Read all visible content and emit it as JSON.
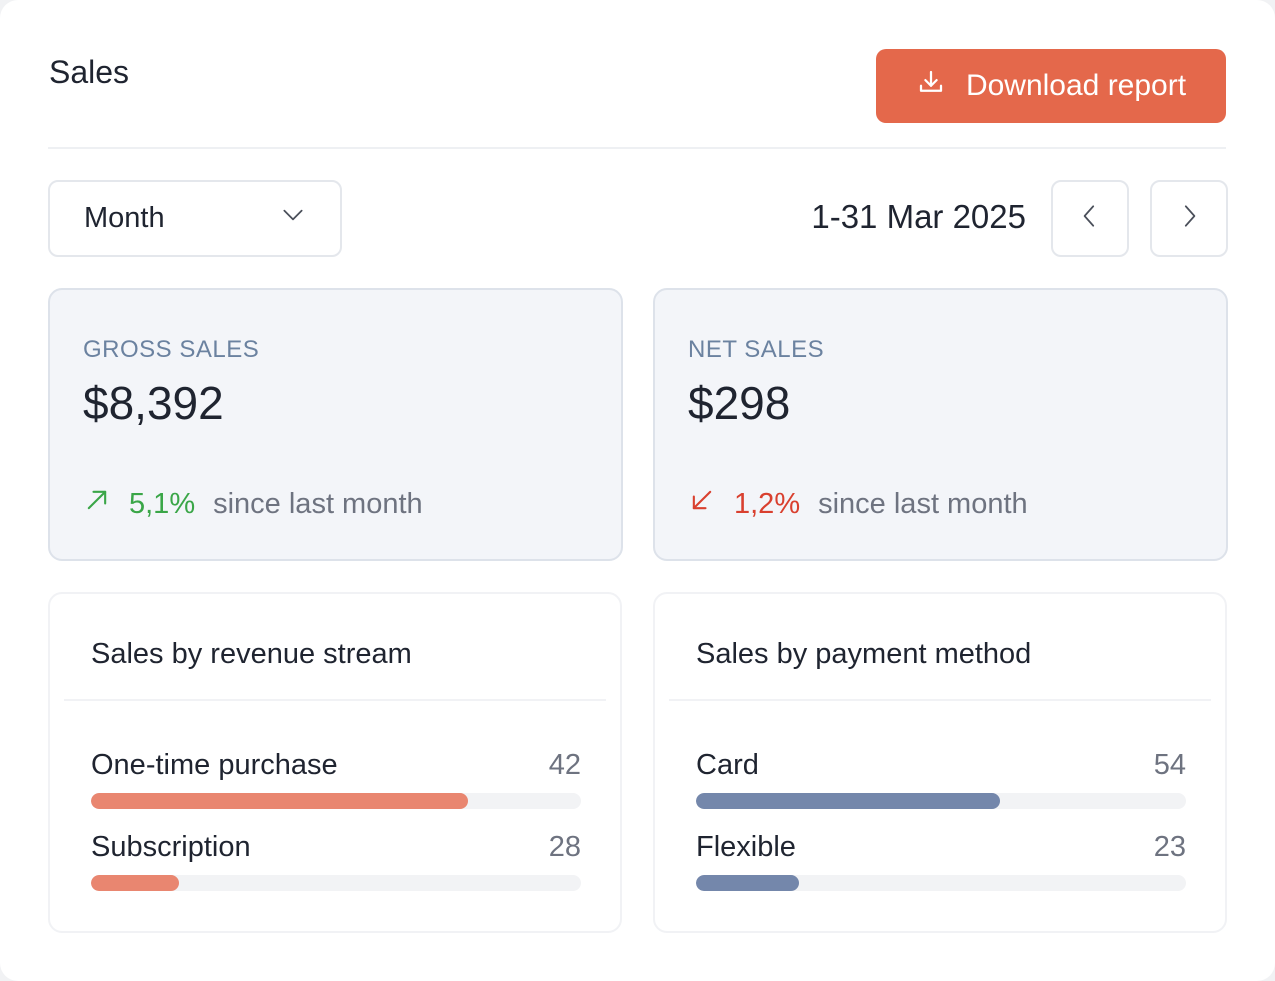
{
  "header": {
    "title": "Sales",
    "download_label": "Download report"
  },
  "filters": {
    "period": "Month",
    "date_range": "1-31 Mar 2025"
  },
  "stats": {
    "gross": {
      "label": "GROSS SALES",
      "value": "$8,392",
      "change": "5,1%",
      "direction": "up",
      "since": "since last month"
    },
    "net": {
      "label": "NET SALES",
      "value": "$298",
      "change": "1,2%",
      "direction": "down",
      "since": "since last month"
    }
  },
  "revenue_stream": {
    "title": "Sales by revenue stream",
    "color": "#e98670",
    "items": [
      {
        "label": "One-time purchase",
        "value": "42",
        "fill": 0.77
      },
      {
        "label": "Subscription",
        "value": "28",
        "fill": 0.18
      }
    ]
  },
  "payment_method": {
    "title": "Sales by payment method",
    "color": "#7487ab",
    "items": [
      {
        "label": "Card",
        "value": "54",
        "fill": 0.62
      },
      {
        "label": "Flexible",
        "value": "23",
        "fill": 0.21
      }
    ]
  },
  "colors": {
    "accent": "#e4684b",
    "up": "#3aa648",
    "down": "#d9402f"
  },
  "icons": {
    "download": "download-icon",
    "dropdown": "chevron-down-icon",
    "prev": "chevron-left-icon",
    "next": "chevron-right-icon",
    "trend_up": "arrow-up-right-icon",
    "trend_down": "arrow-down-left-icon"
  }
}
